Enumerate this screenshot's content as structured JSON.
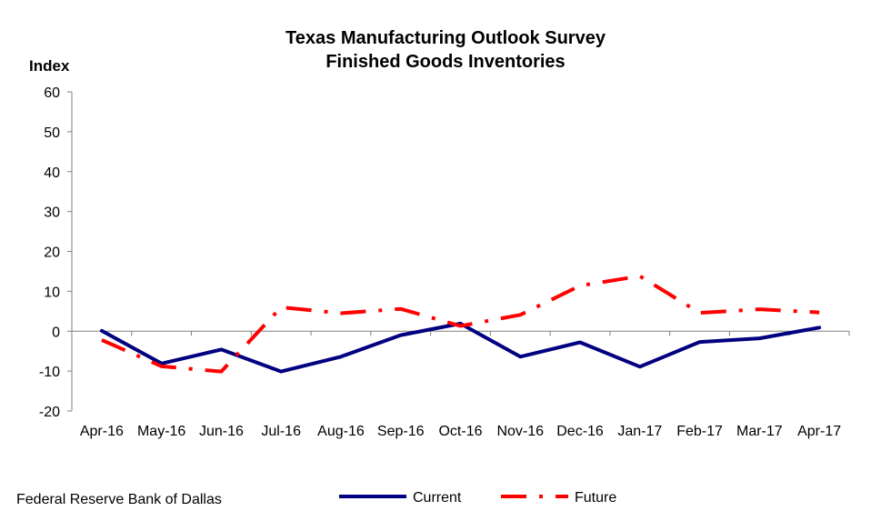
{
  "chart_data": {
    "type": "line",
    "title": "Texas Manufacturing Outlook Survey",
    "subtitle": "Finished Goods Inventories",
    "xlabel": "",
    "ylabel": "Index",
    "ylim": [
      -20,
      60
    ],
    "yticks": [
      -20,
      -10,
      0,
      10,
      20,
      30,
      40,
      50,
      60
    ],
    "grid": false,
    "legend_position": "bottom",
    "categories": [
      "Apr-16",
      "May-16",
      "Jun-16",
      "Jul-16",
      "Aug-16",
      "Sep-16",
      "Oct-16",
      "Nov-16",
      "Dec-16",
      "Jan-17",
      "Feb-17",
      "Mar-17",
      "Apr-17"
    ],
    "series": [
      {
        "name": "Current",
        "color": "#000080",
        "style": "solid",
        "values": [
          0.1,
          -8.1,
          -4.6,
          -10.1,
          -6.4,
          -1.0,
          1.9,
          -6.4,
          -2.8,
          -8.9,
          -2.7,
          -1.8,
          0.9
        ]
      },
      {
        "name": "Future",
        "color": "#ff0000",
        "style": "dash-dot",
        "values": [
          -2.2,
          -8.8,
          -10.1,
          6.0,
          4.5,
          5.6,
          1.3,
          4.1,
          11.4,
          13.8,
          4.6,
          5.5,
          4.7
        ]
      }
    ]
  },
  "source": "Federal Reserve Bank of Dallas"
}
